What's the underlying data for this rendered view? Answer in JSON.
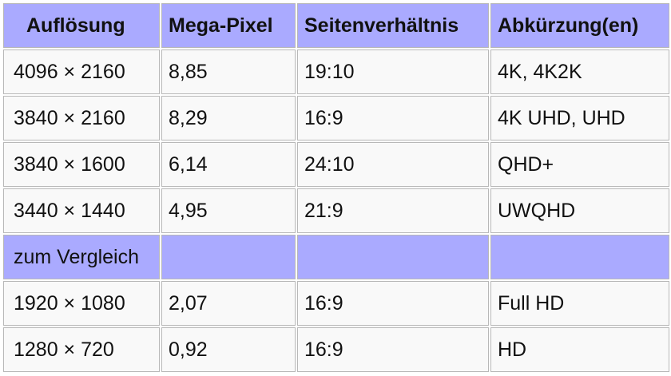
{
  "table": {
    "headers": [
      "Auflösung",
      "Mega-Pixel",
      "Seitenverhältnis",
      "Abkürzung(en)"
    ],
    "rows": [
      [
        "4096 × 2160",
        "8,85",
        "19:10",
        "4K, 4K2K"
      ],
      [
        "3840 × 2160",
        "8,29",
        "16:9",
        "4K UHD, UHD"
      ],
      [
        "3840 × 1600",
        "6,14",
        "24:10",
        "QHD+"
      ],
      [
        "3440 × 1440",
        "4,95",
        "21:9",
        "UWQHD"
      ]
    ],
    "section_label": "zum Vergleich",
    "compare_rows": [
      [
        "1920 × 1080",
        "2,07",
        "16:9",
        "Full HD"
      ],
      [
        "1280 × 720",
        "0,92",
        "16:9",
        "HD"
      ]
    ]
  },
  "colors": {
    "header_bg": "#aaaaff",
    "cell_bg": "#f9f9f9",
    "border": "#b8b8b8"
  }
}
